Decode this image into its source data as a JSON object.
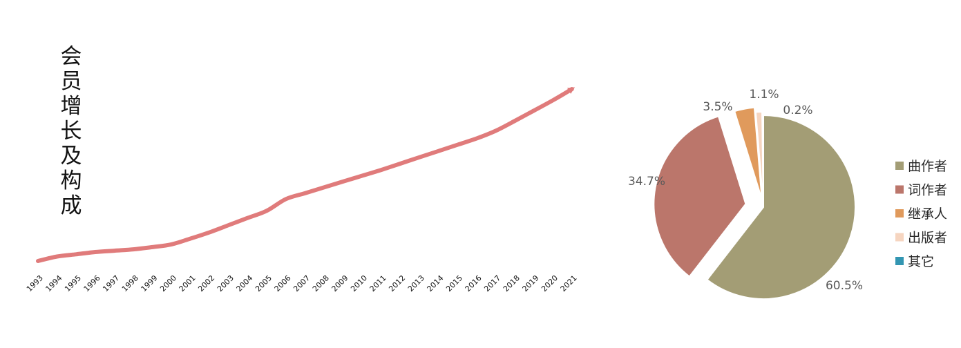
{
  "chart_data": [
    {
      "type": "line",
      "title": "会员增长及构成",
      "x": [
        "1993",
        "1994",
        "1995",
        "1996",
        "1997",
        "1998",
        "1999",
        "2000",
        "2001",
        "2002",
        "2003",
        "2004",
        "2005",
        "2006",
        "2007",
        "2008",
        "2009",
        "2010",
        "2011",
        "2012",
        "2013",
        "2014",
        "2015",
        "2016",
        "2017",
        "2018",
        "2019",
        "2020",
        "2021"
      ],
      "series": [
        {
          "values": [
            0,
            10,
            15,
            20,
            23,
            26,
            31,
            37,
            50,
            64,
            80,
            96,
            112,
            138,
            151,
            164,
            177,
            190,
            203,
            217,
            231,
            245,
            259,
            273,
            290,
            312,
            335,
            358,
            383
          ]
        }
      ],
      "ylim": [
        0,
        400
      ],
      "grid": false,
      "arrow_end": true,
      "colors": {
        "line": "#e07b7b"
      }
    },
    {
      "type": "pie",
      "labels": [
        "曲作者",
        "词作者",
        "继承人",
        "出版者",
        "其它"
      ],
      "values": [
        60.5,
        34.7,
        3.5,
        1.1,
        0.2
      ],
      "value_labels": [
        "60.5%",
        "34.7%",
        "3.5%",
        "1.1%",
        "0.2%"
      ],
      "exploded": true,
      "legend_position": "right",
      "colors": [
        "#a39d75",
        "#bb766b",
        "#e09a5c",
        "#f6d5c0",
        "#3396b2"
      ]
    }
  ]
}
